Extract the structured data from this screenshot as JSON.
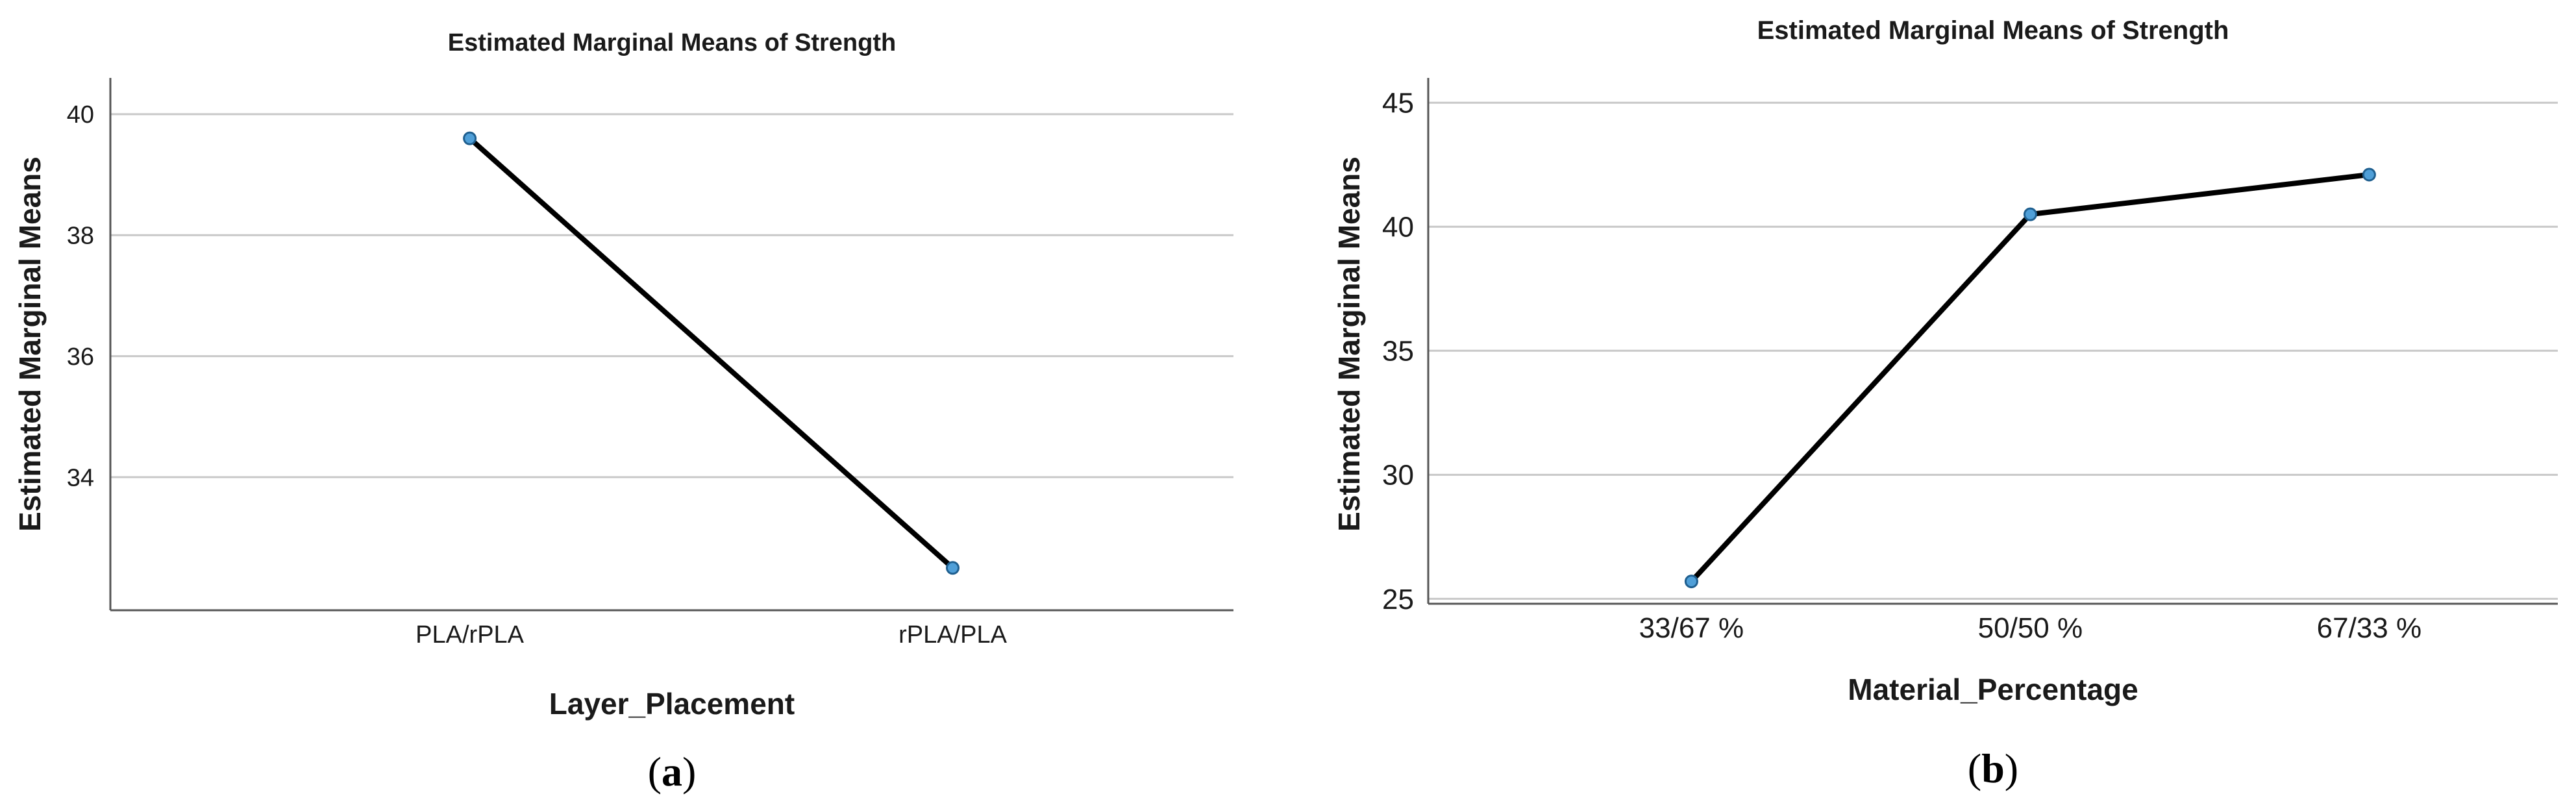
{
  "colors": {
    "line": "#000000",
    "marker_fill": "#4f9fd8",
    "marker_stroke": "#1f5f8f",
    "grid": "#c8c8c8",
    "axis": "#555555"
  },
  "chart_data": [
    {
      "type": "line",
      "panel_label": "(a)",
      "panel_letter": "a",
      "title": "Estimated Marginal Means of Strength",
      "xlabel": "Layer_Placement",
      "ylabel": "Estimated Marginal Means",
      "categories": [
        "PLA/rPLA",
        "rPLA/PLA"
      ],
      "values": [
        39.6,
        32.5
      ],
      "ylim": [
        31.8,
        40.6
      ],
      "yticks": [
        34,
        36,
        38,
        40
      ],
      "grid": true,
      "legend": "none"
    },
    {
      "type": "line",
      "panel_label": "(b)",
      "panel_letter": "b",
      "title": "Estimated Marginal Means of Strength",
      "xlabel": "Material_Percentage",
      "ylabel": "Estimated Marginal Means",
      "categories": [
        "33/67 %",
        "50/50 %",
        "67/33 %"
      ],
      "values": [
        25.7,
        40.5,
        42.1
      ],
      "ylim": [
        24.8,
        46.0
      ],
      "yticks": [
        25,
        30,
        35,
        40,
        45
      ],
      "grid": true,
      "legend": "none"
    }
  ]
}
